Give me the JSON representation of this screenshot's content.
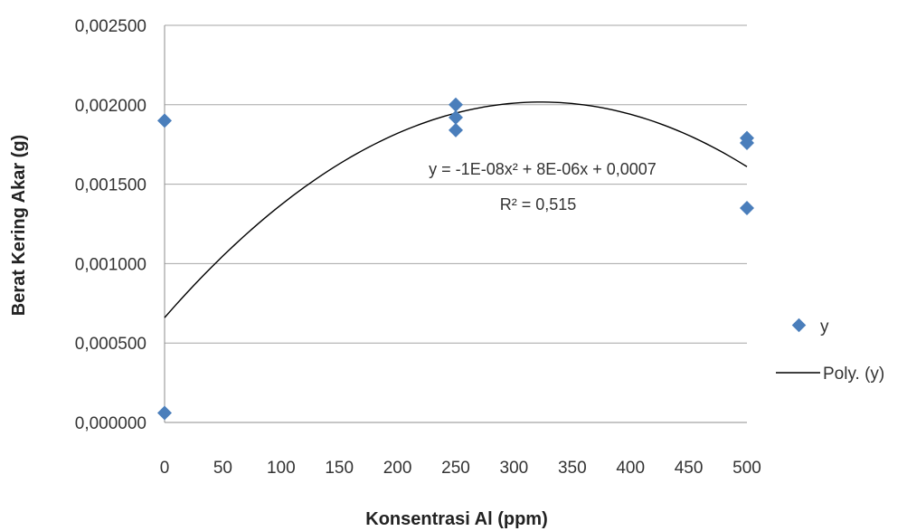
{
  "chart_data": {
    "type": "scatter",
    "title": "",
    "xlabel": "Konsentrasi Al (ppm)",
    "ylabel": "Berat Kering Akar (g)",
    "xlim": [
      0,
      500
    ],
    "ylim": [
      0,
      0.0025
    ],
    "x_ticks": [
      "0",
      "50",
      "100",
      "150",
      "200",
      "250",
      "300",
      "350",
      "400",
      "450",
      "500"
    ],
    "x_tick_values": [
      0,
      50,
      100,
      150,
      200,
      250,
      300,
      350,
      400,
      450,
      500
    ],
    "y_ticks": [
      "0,000000",
      "0,000500",
      "0,001000",
      "0,001500",
      "0,002000",
      "0,002500"
    ],
    "y_tick_values": [
      0,
      0.0005,
      0.001,
      0.0015,
      0.002,
      0.0025
    ],
    "gridlines": "horizontal",
    "series": [
      {
        "name": "y",
        "marker": "diamond",
        "color": "#4a7ebb",
        "points": [
          {
            "x": 0,
            "y": 0.0019
          },
          {
            "x": 0,
            "y": 6e-05
          },
          {
            "x": 250,
            "y": 0.002
          },
          {
            "x": 250,
            "y": 0.00192
          },
          {
            "x": 250,
            "y": 0.00184
          },
          {
            "x": 500,
            "y": 0.00179
          },
          {
            "x": 500,
            "y": 0.00176
          },
          {
            "x": 500,
            "y": 0.00135
          }
        ]
      }
    ],
    "trendline": {
      "name": "Poly. (y)",
      "type": "polynomial",
      "order": 2,
      "color": "#000000",
      "coefficients": {
        "a": -1.3e-08,
        "b": 8.4e-06,
        "c": 0.00066
      },
      "equation": "y = -1E-08x² + 8E-06x + 0,0007",
      "r2_label": "R² = 0,515"
    },
    "legend": {
      "placement": "right",
      "entries": [
        "y",
        "Poly. (y)"
      ]
    }
  }
}
